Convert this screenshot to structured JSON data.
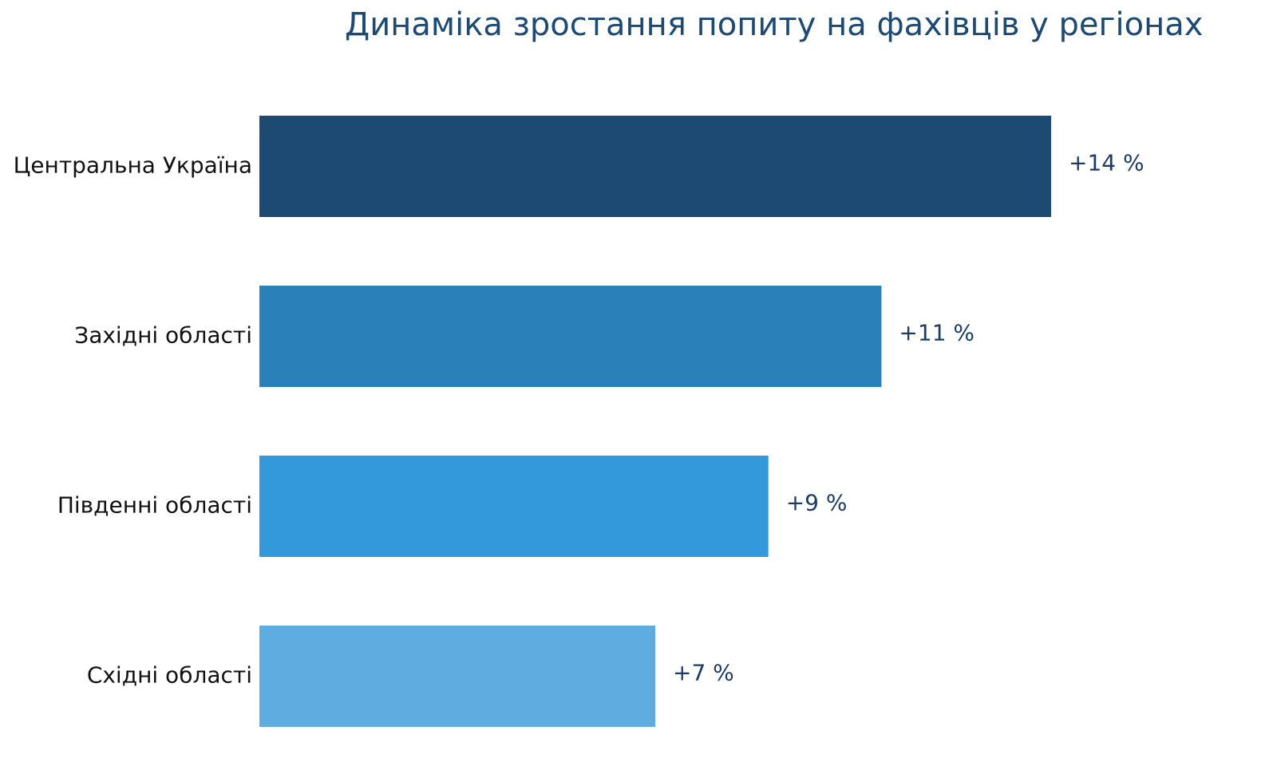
{
  "chart_data": {
    "type": "bar",
    "orientation": "horizontal",
    "title": "Динаміка зростання попиту на фахівців у регіонах",
    "categories": [
      "Центральна Україна",
      "Західні області",
      "Південні області",
      "Східні області"
    ],
    "values": [
      14,
      11,
      9,
      7
    ],
    "value_labels": [
      "+14 %",
      "+11 %",
      "+9 %",
      "+7 %"
    ],
    "colors": [
      "#1c4a72",
      "#2a80b9",
      "#3499da",
      "#5eace0"
    ],
    "xlim": [
      0,
      14
    ],
    "grid": false,
    "legend": "none"
  }
}
